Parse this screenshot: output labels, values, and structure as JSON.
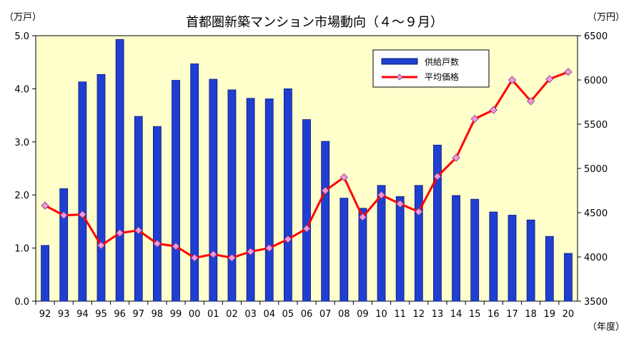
{
  "chart_data": {
    "type": "bar+line",
    "title": "首都圏新築マンション市場動向（４～９月）",
    "left_unit": "（万戸）",
    "right_unit": "（万円）",
    "x_unit": "（年度）",
    "categories": [
      "92",
      "93",
      "94",
      "95",
      "96",
      "97",
      "98",
      "99",
      "00",
      "01",
      "02",
      "03",
      "04",
      "05",
      "06",
      "07",
      "08",
      "09",
      "10",
      "11",
      "12",
      "13",
      "14",
      "15",
      "16",
      "17",
      "18",
      "19",
      "20"
    ],
    "series": [
      {
        "name": "供給戸数",
        "type": "bar",
        "axis": "left",
        "color": "#1f3fd0",
        "values": [
          1.05,
          2.12,
          4.13,
          4.27,
          4.93,
          3.48,
          3.29,
          4.16,
          4.47,
          4.18,
          3.98,
          3.82,
          3.81,
          4.0,
          3.42,
          3.01,
          1.94,
          1.75,
          2.18,
          1.97,
          2.18,
          2.94,
          1.99,
          1.92,
          1.68,
          1.62,
          1.53,
          1.22,
          0.9
        ]
      },
      {
        "name": "平均価格",
        "type": "line",
        "axis": "right",
        "color": "#ff0000",
        "marker_color": "#ee99dd",
        "values": [
          4580,
          4470,
          4480,
          4130,
          4270,
          4300,
          4150,
          4120,
          3990,
          4030,
          3990,
          4060,
          4100,
          4200,
          4320,
          4750,
          4900,
          4450,
          4700,
          4600,
          4510,
          4910,
          5120,
          5560,
          5660,
          6000,
          5760,
          6010,
          6090
        ]
      }
    ],
    "left_axis": {
      "min": 0,
      "max": 5.0,
      "ticks": [
        "0.0",
        "1.0",
        "2.0",
        "3.0",
        "4.0",
        "5.0"
      ]
    },
    "right_axis": {
      "min": 3500,
      "max": 6500,
      "ticks": [
        "3500",
        "4000",
        "4500",
        "5000",
        "5500",
        "6000",
        "6500"
      ]
    },
    "plot_background": "#ffffcc",
    "legend_position": "top-right",
    "grid": false
  }
}
